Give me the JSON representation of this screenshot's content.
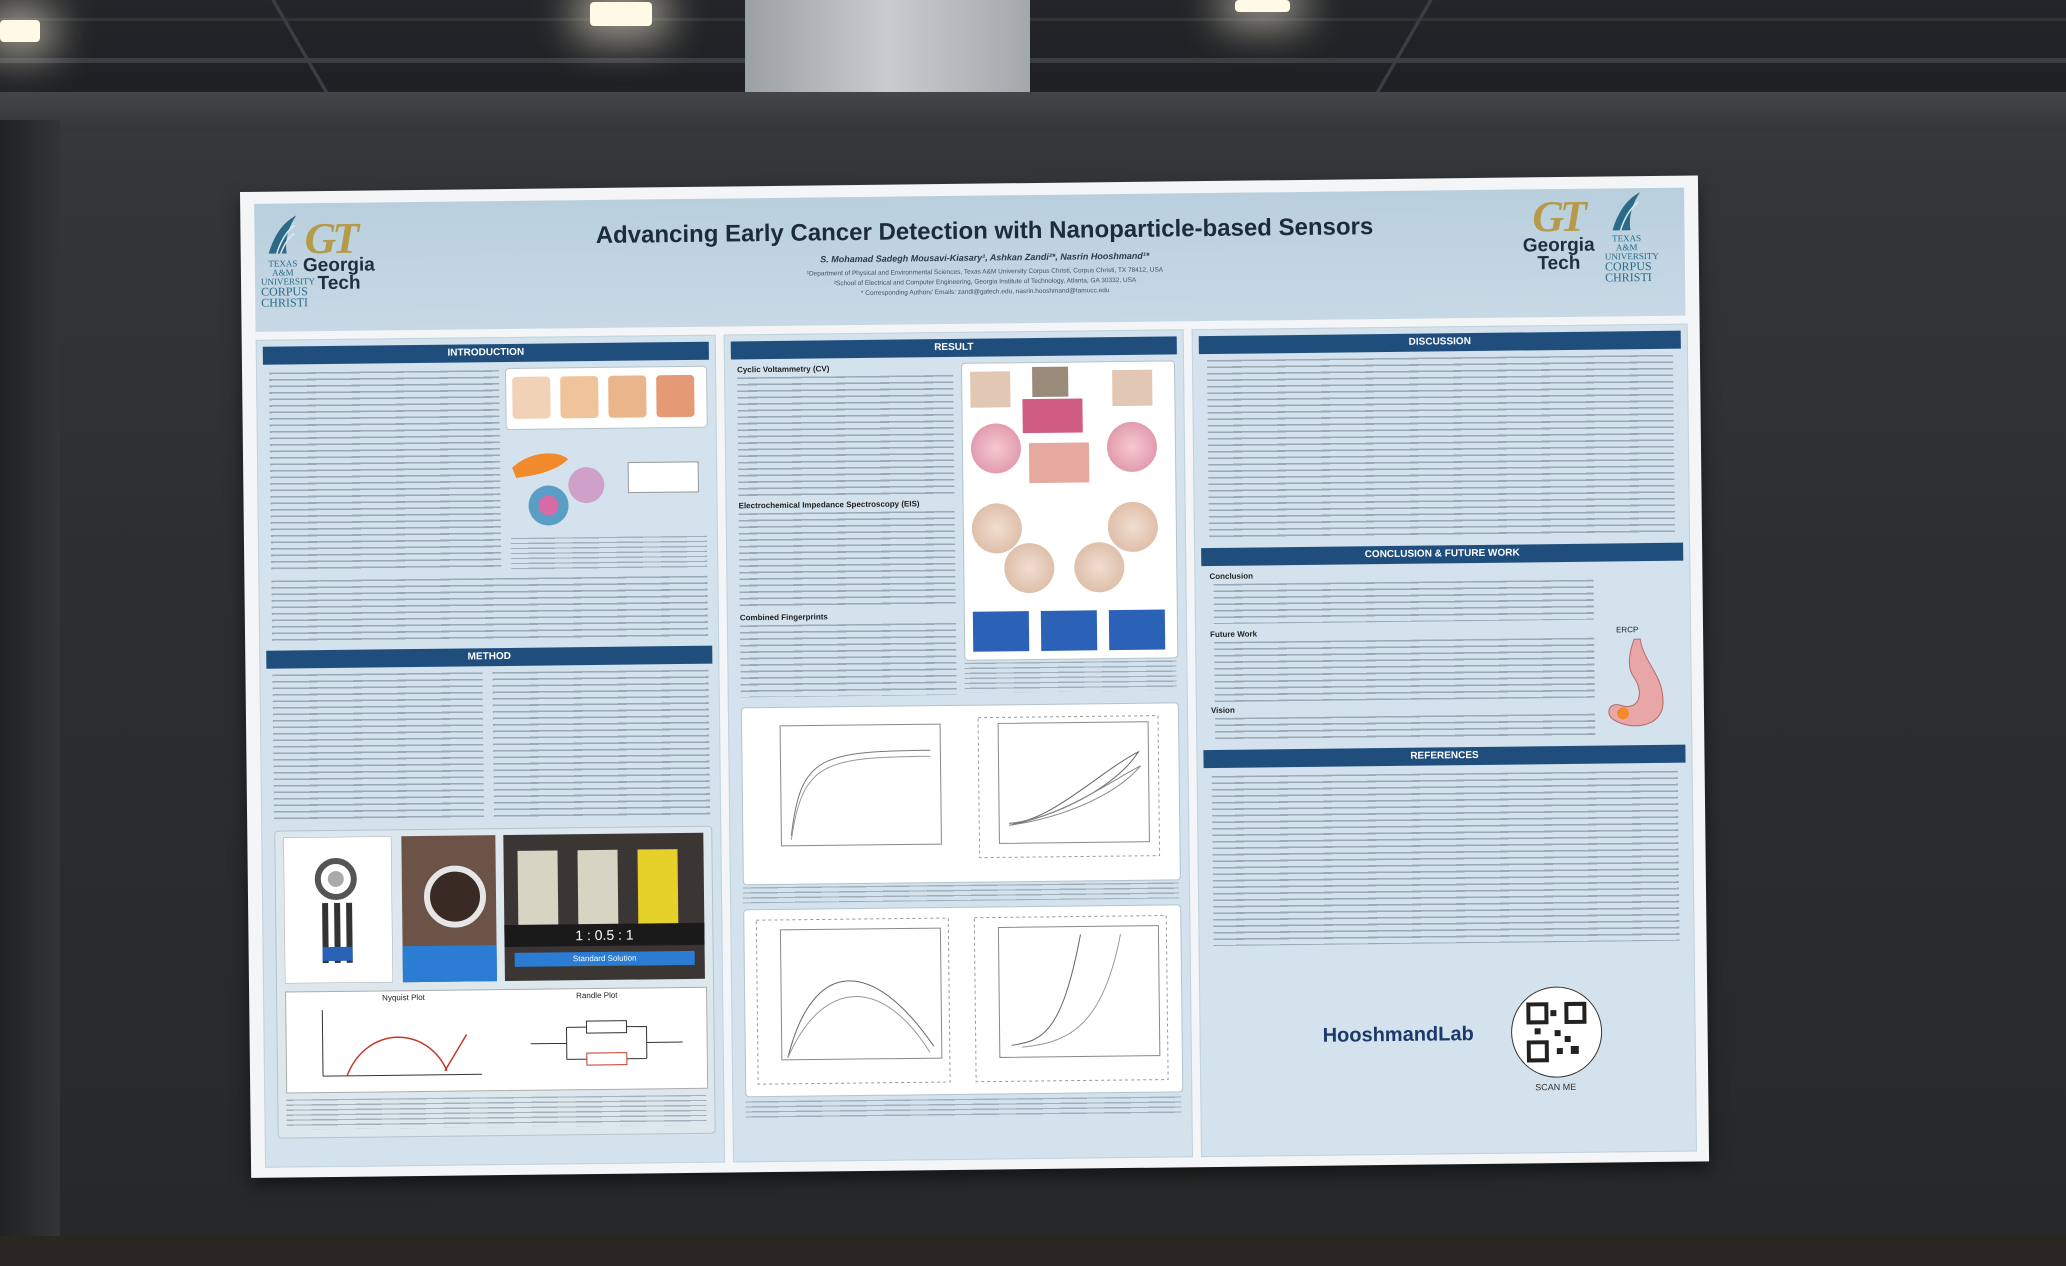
{
  "poster": {
    "title": "Advancing Early Cancer Detection with Nanoparticle-based Sensors",
    "authors": "S. Mohamad Sadegh Mousavi-Kiasary¹, Ashkan Zandi²*, Nasrin Hooshmand¹*",
    "affiliation_1": "¹Department of Physical and Environmental Sciences, Texas A&M University Corpus Christi, Corpus Christi, TX 78412, USA",
    "affiliation_2": "²School of Electrical and Computer Engineering, Georgia Institute of Technology, Atlanta, GA 30332, USA",
    "corresponding": "* Corresponding Authors' Emails: zandi@gatech.edu, nasrin.hooshmand@tamucc.edu",
    "logo_left": {
      "mark": "GT",
      "name_line1": "Georgia",
      "name_line2": "Tech"
    },
    "logo_right": {
      "mark": "GT",
      "name_line1": "Georgia",
      "name_line2": "Tech"
    },
    "tamu_logo": {
      "line1": "TEXAS A&M",
      "line2": "UNIVERSITY",
      "line3": "CORPUS",
      "line4": "CHRISTI"
    },
    "sections": {
      "introduction": "INTRODUCTION",
      "method": "METHOD",
      "result": "RESULT",
      "discussion": "DISCUSSION",
      "conclusion": "CONCLUSION & FUTURE WORK",
      "references": "REFERENCES"
    },
    "method_labels": {
      "ratio": "1  :  0.5  :  1",
      "standard_solution": "Standard Solution",
      "nyquist": "Nyquist Plot",
      "randle": "Randle Plot"
    },
    "result_subheads": [
      "Cyclic Voltammetry (CV)",
      "Electrochemical Impedance Spectroscopy (EIS)",
      "Combined Fingerprints"
    ],
    "conclusion_subheads": [
      "Conclusion",
      "Future Work",
      "Vision"
    ],
    "ercp_label": "ERCP",
    "lab_name": "HooshmandLab",
    "scan_label": "SCAN ME"
  },
  "colors": {
    "section_header": "#1f4e7d",
    "column_bg": "#d3e2ec",
    "header_bg": "#c7d9e5",
    "gt_gold": "#b59a4a",
    "board": "#2c2e30"
  }
}
